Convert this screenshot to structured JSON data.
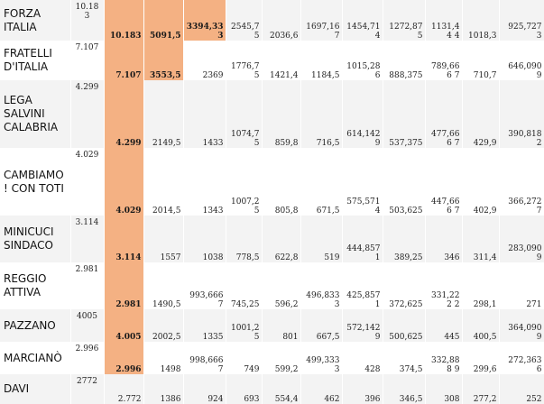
{
  "colors": {
    "highlight": "#f4b183",
    "row_alt": "#f3f3f3"
  },
  "table": {
    "rows": [
      {
        "party": "FORZA ITALIA",
        "votes": "10.18 3",
        "cells": [
          "10.183",
          "5091,5",
          "3394,33 3",
          "2545,7 5",
          "2036,6",
          "1697,16 7",
          "1454,71 4",
          "1272,87 5",
          "1131,44 4",
          "1018,3",
          "925,727 3"
        ],
        "highlighted": 3
      },
      {
        "party": "FRATELLI D'ITALIA",
        "votes": "7.107",
        "cells": [
          "7.107",
          "3553,5",
          "2369",
          "1776,7 5",
          "1421,4",
          "1184,5",
          "1015,28 6",
          "888,375",
          "789,666 7",
          "710,7",
          "646,090 9"
        ],
        "highlighted": 2
      },
      {
        "party": "LEGA SALVINI CALABRIA",
        "votes": "4.299",
        "cells": [
          "4.299",
          "2149,5",
          "1433",
          "1074,7 5",
          "859,8",
          "716,5",
          "614,142 9",
          "537,375",
          "477,666 7",
          "429,9",
          "390,818 2"
        ],
        "highlighted": 1
      },
      {
        "party": "CAMBIAMO ! CON TOTI",
        "votes": "4.029",
        "cells": [
          "4.029",
          "2014,5",
          "1343",
          "1007,2 5",
          "805,8",
          "671,5",
          "575,571 4",
          "503,625",
          "447,666 7",
          "402,9",
          "366,272 7"
        ],
        "highlighted": 1
      },
      {
        "party": "MINICUCI SINDACO",
        "votes": "3.114",
        "cells": [
          "3.114",
          "1557",
          "1038",
          "778,5",
          "622,8",
          "519",
          "444,857 1",
          "389,25",
          "346",
          "311,4",
          "283,090 9"
        ],
        "highlighted": 1
      },
      {
        "party": "REGGIO ATTIVA",
        "votes": "2.981",
        "cells": [
          "2.981",
          "1490,5",
          "993,666 7",
          "745,25",
          "596,2",
          "496,833 3",
          "425,857 1",
          "372,625",
          "331,222 2",
          "298,1",
          "271"
        ],
        "highlighted": 1
      },
      {
        "party": "PAZZANO",
        "votes": "4005",
        "cells": [
          "4.005",
          "2002,5",
          "1335",
          "1001,2 5",
          "801",
          "667,5",
          "572,142 9",
          "500,625",
          "445",
          "400,5",
          "364,090 9"
        ],
        "highlighted": 1
      },
      {
        "party": "MARCIANÒ",
        "votes": "2.996",
        "cells": [
          "2.996",
          "1498",
          "998,666 7",
          "749",
          "599,2",
          "499,333 3",
          "428",
          "374,5",
          "332,888 9",
          "299,6",
          "272,363 6"
        ],
        "highlighted": 1
      },
      {
        "party": "DAVI",
        "votes": "2772",
        "cells": [
          "2.772",
          "1386",
          "924",
          "693",
          "554,4",
          "462",
          "396",
          "346,5",
          "308",
          "277,2",
          "252"
        ],
        "highlighted": 0
      }
    ]
  }
}
